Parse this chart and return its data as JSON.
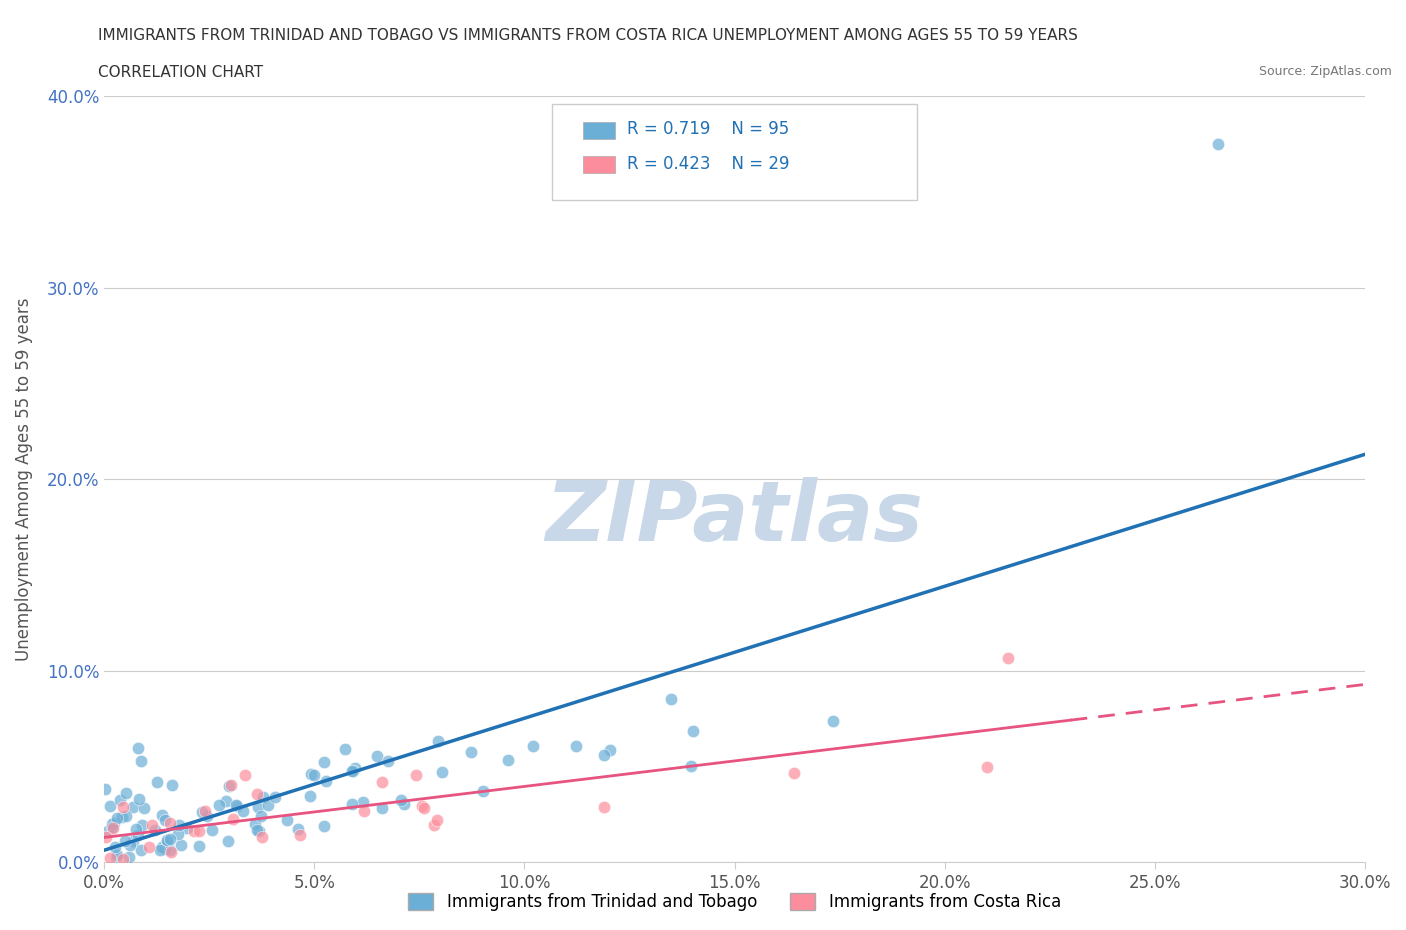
{
  "title_line1": "IMMIGRANTS FROM TRINIDAD AND TOBAGO VS IMMIGRANTS FROM COSTA RICA UNEMPLOYMENT AMONG AGES 55 TO 59 YEARS",
  "title_line2": "CORRELATION CHART",
  "source_text": "Source: ZipAtlas.com",
  "xlabel": "",
  "ylabel": "Unemployment Among Ages 55 to 59 years",
  "xlim": [
    0.0,
    0.3
  ],
  "ylim": [
    0.0,
    0.4
  ],
  "xticks": [
    0.0,
    0.05,
    0.1,
    0.15,
    0.2,
    0.25,
    0.3
  ],
  "yticks": [
    0.0,
    0.1,
    0.2,
    0.3,
    0.4
  ],
  "xtick_labels": [
    "0.0%",
    "5.0%",
    "10.0%",
    "15.0%",
    "20.0%",
    "25.0%",
    "30.0%"
  ],
  "ytick_labels": [
    "0.0%",
    "10.0%",
    "20.0%",
    "30.0%",
    "40.0%"
  ],
  "legend_label1": "Immigrants from Trinidad and Tobago",
  "legend_label2": "Immigrants from Costa Rica",
  "R1": 0.719,
  "N1": 95,
  "R2": 0.423,
  "N2": 29,
  "color1": "#6baed6",
  "color2": "#fc8d9c",
  "regression_color1": "#2171b5",
  "regression_color2": "#e75480",
  "watermark": "ZIPatlas",
  "watermark_color": "#c8d8e8",
  "background_color": "#ffffff",
  "seed1": 42,
  "seed2": 99
}
